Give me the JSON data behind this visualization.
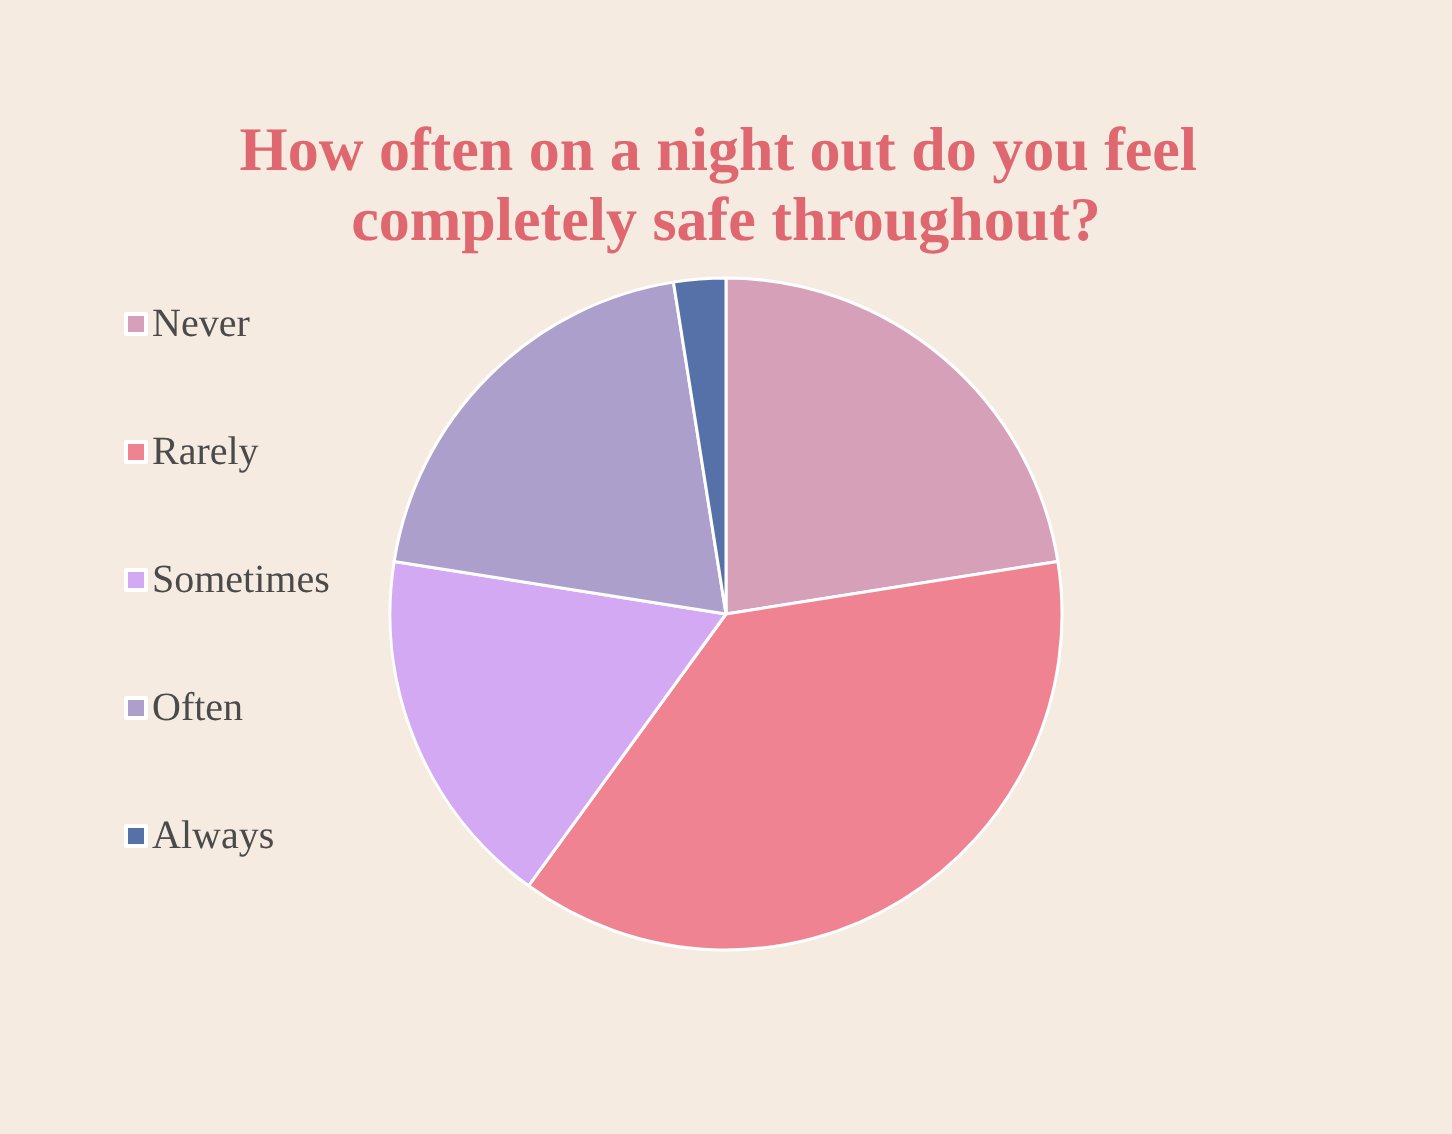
{
  "chart_data": {
    "type": "pie",
    "title": "How often on a night out do you feel completely safe throughout?",
    "categories": [
      "Never",
      "Rarely",
      "Sometimes",
      "Often",
      "Always"
    ],
    "values": [
      22.5,
      37.5,
      17.5,
      20,
      2.5
    ],
    "colors": [
      "#d7a0b9",
      "#ef8391",
      "#d4a9f3",
      "#ad9fcc",
      "#5670a8"
    ],
    "legend": "left"
  }
}
